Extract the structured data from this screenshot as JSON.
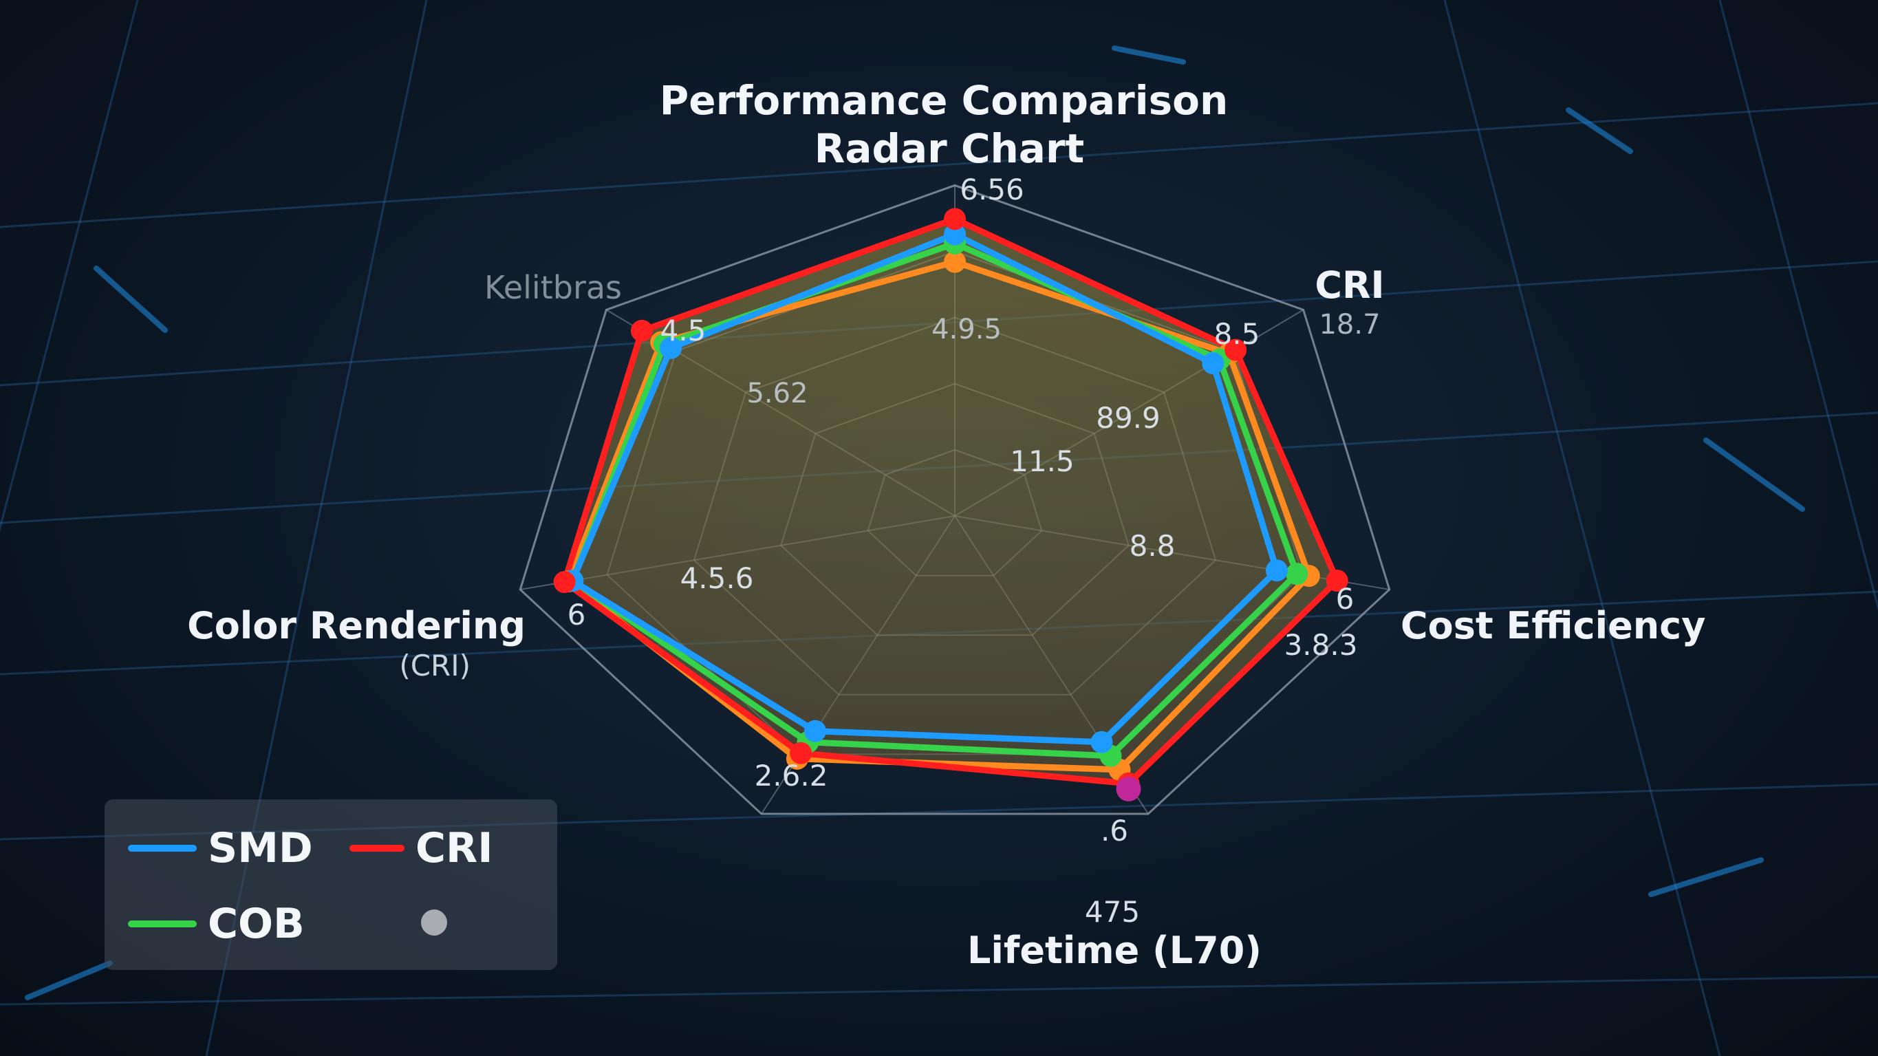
{
  "chart_data": {
    "type": "radar",
    "title_lines": [
      "Performance Comparison",
      "Radar Chart"
    ],
    "axes": [
      {
        "label": "6.56",
        "sub": ""
      },
      {
        "label": "CRI",
        "sub": "18.7"
      },
      {
        "label": "Cost Efficiency",
        "sub": ""
      },
      {
        "label": "475",
        "sub": "Lifetime (L70)"
      },
      {
        "label": "",
        "sub": ""
      },
      {
        "label": "Color Rendering",
        "sub": "(CRI)"
      },
      {
        "label": "Kelitbras",
        "sub": ""
      }
    ],
    "rlim": [
      0,
      100
    ],
    "rings": 5,
    "value_labels": [
      "4.9.5",
      "8.5",
      "89.9",
      "11.5",
      "8.8",
      "6",
      "3.8.3",
      ".6",
      "2.6.2",
      "4.5.6",
      "6",
      "5.62",
      "4.5"
    ],
    "series": [
      {
        "name": "SMD",
        "color": "#1e9bff",
        "values": [
          92,
          80,
          80,
          82,
          78,
          95,
          88
        ]
      },
      {
        "name": "CRI",
        "color": "#ff1f1f",
        "values": [
          97,
          87,
          95,
          97,
          86,
          97,
          97
        ]
      },
      {
        "name": "COB",
        "color": "#35d24a",
        "values": [
          89,
          82,
          85,
          87,
          82,
          95,
          90
        ]
      },
      {
        "name": "",
        "color": "#ff8a1f",
        "values": [
          83,
          85,
          88,
          92,
          88,
          96,
          91
        ]
      }
    ],
    "legend": [
      "SMD",
      "CRI",
      "COB",
      ""
    ]
  }
}
